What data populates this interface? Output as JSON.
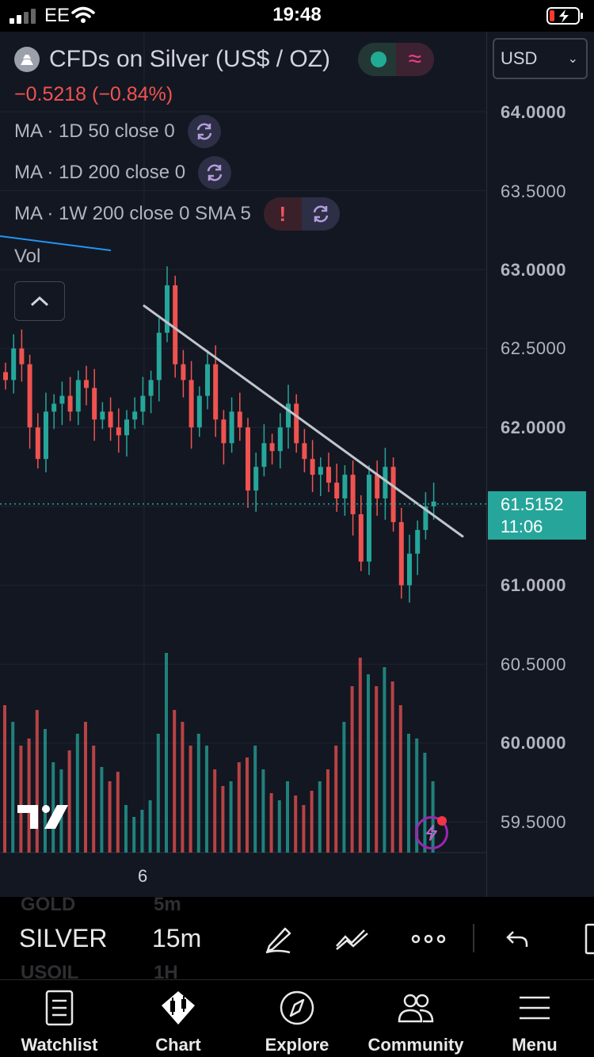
{
  "status_bar": {
    "carrier": "EE",
    "time": "19:48"
  },
  "header": {
    "symbol_title": "CFDs on Silver (US$ / OZ)",
    "change": "−0.5218 (−0.84%)",
    "currency": "USD"
  },
  "indicators": [
    {
      "label": "MA · 1D 50 close 0"
    },
    {
      "label": "MA · 1D 200 close 0"
    },
    {
      "label": "MA · 1W 200 close 0 SMA 5",
      "warning": "!"
    },
    {
      "label": "Vol"
    }
  ],
  "price_scale": {
    "labels": [
      "64.0000",
      "63.5000",
      "63.0000",
      "62.5000",
      "62.0000",
      "61.0000",
      "60.5000",
      "60.0000",
      "59.5000"
    ],
    "current_price": "61.5152",
    "countdown": "11:06"
  },
  "x_axis": {
    "tick": "6"
  },
  "chart_data": {
    "type": "candlestick",
    "ylim": [
      59.3,
      64.2
    ],
    "last_price": 61.5152,
    "colors": {
      "up": "#26a69a",
      "down": "#ef5350",
      "trendline": "#c0c4cc"
    },
    "trendline": {
      "from": 62.77,
      "to": 61.31
    },
    "close_series": [
      62.3,
      62.5,
      62.4,
      62.0,
      61.8,
      62.1,
      62.15,
      62.2,
      62.1,
      62.3,
      62.25,
      62.05,
      62.1,
      62.0,
      61.95,
      62.05,
      62.1,
      62.2,
      62.3,
      62.6,
      62.9,
      62.4,
      62.3,
      62.0,
      62.2,
      62.4,
      62.05,
      61.9,
      62.1,
      62.0,
      61.6,
      61.75,
      61.9,
      61.85,
      62.0,
      62.15,
      61.9,
      61.8,
      61.7,
      61.75,
      61.65,
      61.55,
      61.7,
      61.45,
      61.15,
      61.7,
      61.55,
      61.75,
      61.4,
      61.0,
      61.2,
      61.35,
      61.5,
      61.53
    ]
  },
  "volume_data": [
    0.62,
    0.55,
    0.45,
    0.48,
    0.6,
    0.52,
    0.38,
    0.35,
    0.43,
    0.5,
    0.55,
    0.45,
    0.36,
    0.3,
    0.34,
    0.2,
    0.15,
    0.18,
    0.22,
    0.5,
    0.84,
    0.6,
    0.55,
    0.45,
    0.5,
    0.45,
    0.35,
    0.28,
    0.3,
    0.38,
    0.4,
    0.45,
    0.35,
    0.25,
    0.22,
    0.3,
    0.24,
    0.2,
    0.26,
    0.3,
    0.35,
    0.45,
    0.55,
    0.7,
    0.82,
    0.75,
    0.7,
    0.78,
    0.72,
    0.62,
    0.5,
    0.48,
    0.42,
    0.3
  ],
  "toolbar": {
    "ghost_above": [
      "GOLD",
      "5m"
    ],
    "symbol": "SILVER",
    "interval": "15m",
    "ghost_below": [
      "USOIL",
      "1H"
    ]
  },
  "nav": [
    {
      "label": "Watchlist",
      "icon": "watchlist-icon"
    },
    {
      "label": "Chart",
      "icon": "chart-icon"
    },
    {
      "label": "Explore",
      "icon": "compass-icon"
    },
    {
      "label": "Community",
      "icon": "community-icon"
    },
    {
      "label": "Menu",
      "icon": "menu-icon"
    }
  ]
}
